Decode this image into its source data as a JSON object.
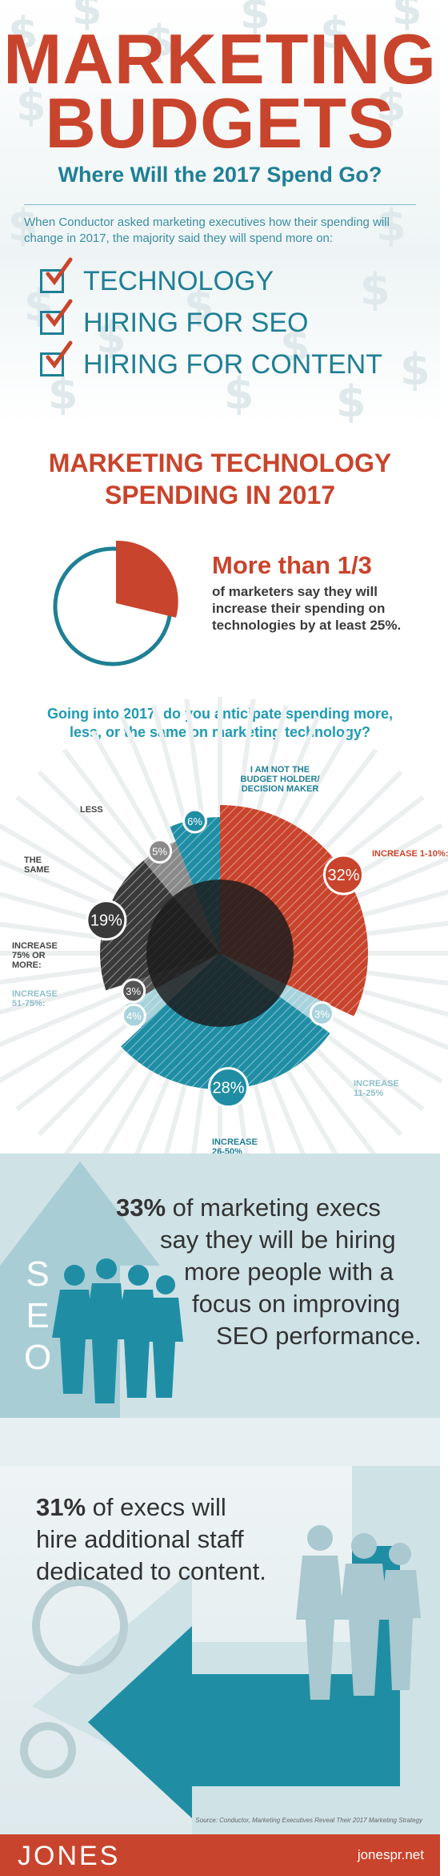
{
  "hero": {
    "title_line1": "MARKETING",
    "title_line2": "BUDGETS",
    "subtitle": "Where Will the 2017 Spend Go?",
    "intro": "When Conductor asked marketing executives how their spending will change in 2017, the majority said they will spend more on:",
    "checklist": [
      "TECHNOLOGY",
      "HIRING FOR SEO",
      "HIRING FOR CONTENT"
    ]
  },
  "tech_section": {
    "title_line1": "MARKETING TECHNOLOGY",
    "title_line2": "SPENDING IN 2017",
    "stat_headline": "More than 1/3",
    "stat_text": "of marketers say they will increase their spending on technologies by at least 25%.",
    "question": "Going into 2017, do you anticipate spending more, less, or the same on marketing technology?"
  },
  "chart_data": {
    "type": "pie",
    "slices": [
      {
        "label": "INCREASE 1-10%:",
        "value": 32,
        "display": "32%",
        "color": "#c9442c"
      },
      {
        "label": "INCREASE 11-25%",
        "value": 3,
        "display": "3%",
        "color": "#a9d3dc"
      },
      {
        "label": "INCREASE 26-50%",
        "value": 28,
        "display": "28%",
        "color": "#1f8ea5"
      },
      {
        "label": "INCREASE 51-75%:",
        "value": 4,
        "display": "4%",
        "color": "#a9d3dc"
      },
      {
        "label": "INCREASE 75% OR MORE:",
        "value": 3,
        "display": "3%",
        "color": "#555555"
      },
      {
        "label": "THE SAME",
        "value": 19,
        "display": "19%",
        "color": "#3a3a3a"
      },
      {
        "label": "LESS",
        "value": 5,
        "display": "5%",
        "color": "#8a8a8a"
      },
      {
        "label": "I AM NOT THE BUDGET HOLDER/ DECISION MAKER",
        "value": 6,
        "display": "6%",
        "color": "#1f8ea5"
      }
    ]
  },
  "seo_section": {
    "letters": [
      "S",
      "E",
      "O"
    ],
    "stat_number": "33%",
    "stat_text_1": "of marketing execs",
    "stat_lines": [
      "say they will be hiring",
      "more people with a",
      "focus on improving",
      "SEO performance."
    ]
  },
  "content_section": {
    "stat_number": "31%",
    "stat_text_1": "of execs will",
    "stat_lines": [
      "hire additional staff",
      "dedicated to content."
    ]
  },
  "source": "Source: Conductor, Marketing Executives Reveal Their 2017 Marketing Strategy",
  "footer": {
    "logo": "JONES",
    "url": "jonespr.net"
  },
  "colors": {
    "accent_red": "#c9442c",
    "accent_teal": "#1f7f95",
    "dark": "#3a3a3a"
  }
}
